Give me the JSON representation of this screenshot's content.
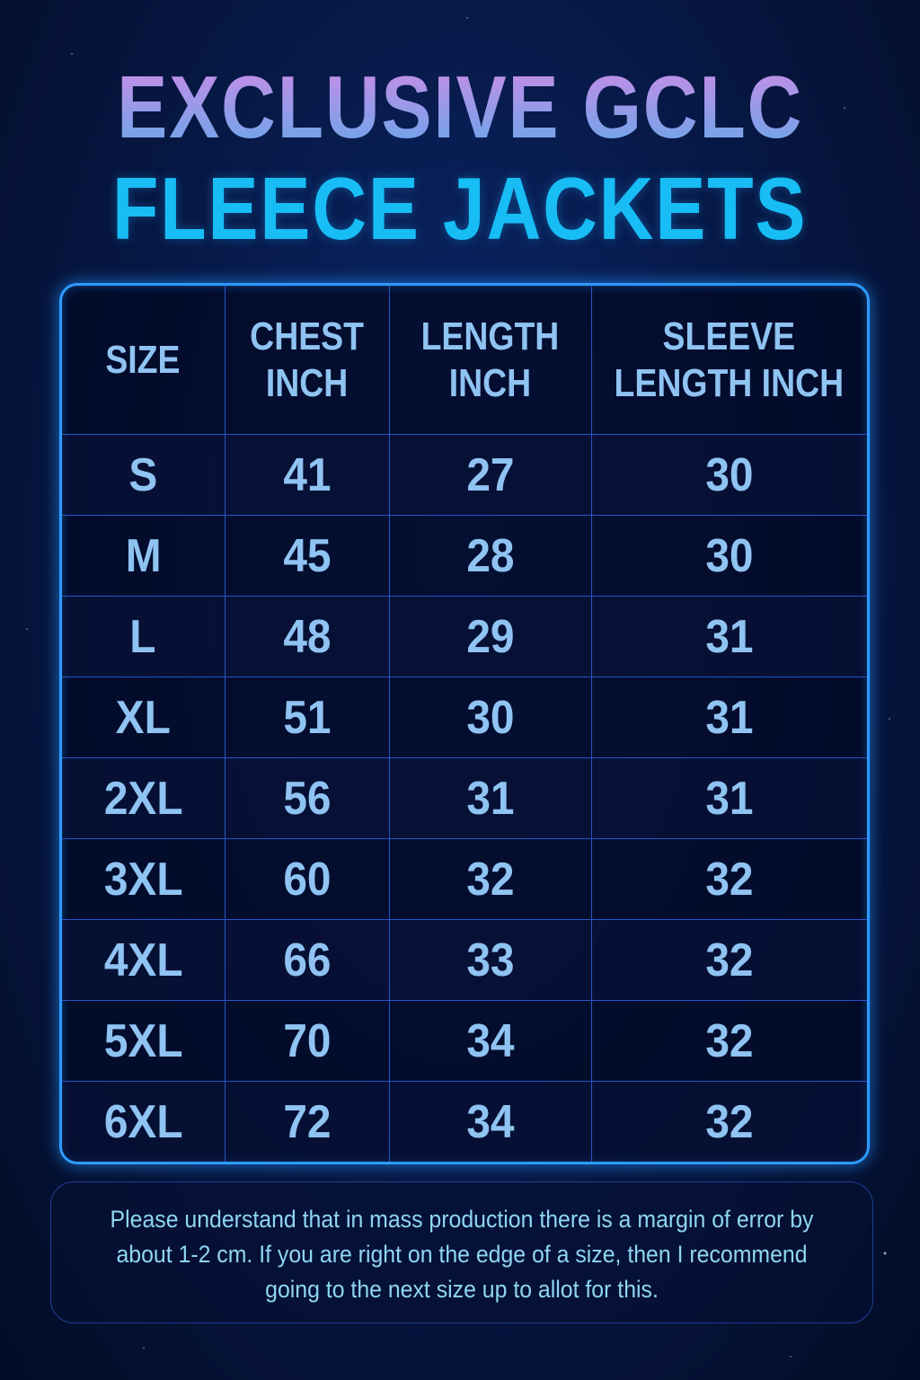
{
  "title": {
    "line1": "EXCLUSIVE GCLC",
    "line2": "FLEECE JACKETS"
  },
  "colors": {
    "title_line1_gradient": [
      "#c98ce6",
      "#6aa6ea"
    ],
    "title_line2": "#18bdf5",
    "table_border": "#2e9bff",
    "text": "#8fc3f2",
    "background": "#071a4a"
  },
  "table": {
    "headers": [
      "SIZE",
      "CHEST INCH",
      "LENGTH INCH",
      "SLEEVE LENGTH INCH"
    ],
    "rows": [
      [
        "S",
        "41",
        "27",
        "30"
      ],
      [
        "M",
        "45",
        "28",
        "30"
      ],
      [
        "L",
        "48",
        "29",
        "31"
      ],
      [
        "XL",
        "51",
        "30",
        "31"
      ],
      [
        "2XL",
        "56",
        "31",
        "31"
      ],
      [
        "3XL",
        "60",
        "32",
        "32"
      ],
      [
        "4XL",
        "66",
        "33",
        "32"
      ],
      [
        "5XL",
        "70",
        "34",
        "32"
      ],
      [
        "6XL",
        "72",
        "34",
        "32"
      ]
    ]
  },
  "note": "Please understand that in mass production there is a margin of error by about 1-2 cm. If you are right on the edge of a size, then I recommend going to the next size up to allot for this."
}
